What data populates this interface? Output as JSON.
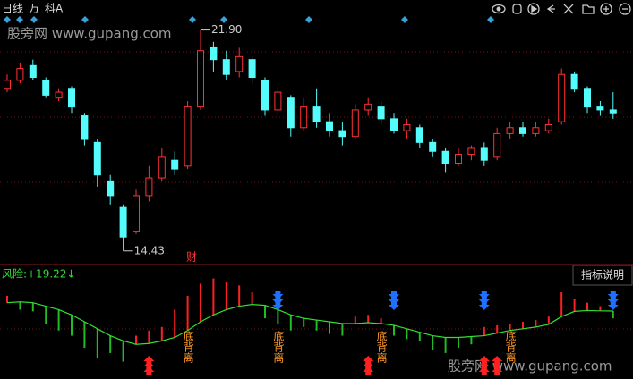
{
  "toolbar": {
    "period": "日线",
    "items": [
      "万",
      "科A"
    ]
  },
  "watermark": "股旁网 www.gupang.com",
  "chart_data": [
    {
      "type": "candlestick",
      "ylim": [
        14.0,
        22.25
      ],
      "up_color": "#ff3232",
      "down_color": "#54fcfc",
      "open": [
        19.9,
        20.2,
        20.7,
        20.2,
        19.6,
        19.9,
        19.0,
        18.1,
        16.8,
        15.9,
        15.1,
        16.3,
        16.9,
        17.5,
        17.3,
        19.3,
        21.3,
        20.9,
        20.5,
        20.9,
        20.2,
        19.2,
        19.6,
        18.6,
        19.3,
        18.8,
        18.5,
        18.3,
        19.2,
        19.3,
        18.9,
        18.5,
        18.6,
        18.1,
        17.8,
        17.4,
        17.7,
        17.9,
        17.6,
        18.4,
        18.6,
        18.4,
        18.5,
        18.8,
        20.4,
        19.9,
        19.3,
        19.2
      ],
      "close": [
        20.2,
        20.6,
        20.3,
        19.7,
        19.8,
        19.3,
        18.2,
        17.0,
        16.3,
        14.9,
        16.3,
        16.9,
        17.6,
        17.2,
        19.3,
        21.2,
        20.9,
        20.4,
        21.0,
        20.3,
        19.2,
        19.8,
        18.6,
        19.3,
        18.8,
        18.5,
        18.3,
        19.2,
        19.4,
        18.9,
        18.5,
        18.7,
        18.1,
        17.8,
        17.4,
        17.7,
        17.9,
        17.5,
        18.4,
        18.6,
        18.4,
        18.6,
        18.7,
        20.4,
        19.9,
        19.3,
        19.2,
        19.1
      ],
      "high": [
        20.4,
        20.8,
        20.9,
        20.3,
        19.9,
        20.0,
        19.1,
        18.2,
        17.0,
        16.0,
        16.5,
        17.3,
        17.9,
        17.8,
        19.5,
        21.9,
        21.5,
        21.2,
        21.3,
        21.0,
        20.3,
        20.0,
        19.7,
        19.6,
        19.9,
        19.1,
        18.8,
        19.4,
        19.6,
        19.5,
        19.1,
        18.9,
        18.7,
        18.2,
        17.9,
        17.9,
        18.0,
        18.1,
        18.6,
        18.8,
        18.8,
        18.8,
        18.9,
        20.6,
        20.5,
        20.0,
        19.5,
        19.8
      ],
      "low": [
        19.8,
        20.1,
        20.2,
        19.6,
        19.5,
        19.1,
        18.0,
        16.6,
        16.0,
        14.43,
        15.0,
        16.1,
        16.8,
        17.0,
        17.2,
        19.2,
        20.5,
        20.2,
        20.3,
        20.1,
        19.0,
        19.0,
        18.3,
        18.5,
        18.6,
        18.3,
        18.0,
        18.2,
        19.0,
        18.7,
        18.4,
        18.2,
        17.9,
        17.6,
        17.1,
        17.3,
        17.5,
        17.3,
        17.5,
        18.2,
        18.3,
        18.3,
        18.4,
        18.7,
        19.8,
        19.1,
        19.0,
        18.9
      ],
      "high_label": {
        "value": 21.9,
        "label": "21.90"
      },
      "low_label": 14.43,
      "event_label": "财"
    },
    {
      "type": "indicator",
      "ylim": [
        -20,
        45
      ],
      "series": [
        {
          "name": "风险:",
          "color": "#33dd33",
          "values": [
            24,
            24.5,
            24,
            22,
            20,
            17,
            13,
            9,
            5,
            2,
            0,
            0.5,
            2,
            4,
            8,
            13,
            17,
            20,
            22,
            23,
            22.5,
            20,
            17,
            15,
            14,
            13,
            12,
            12,
            12.5,
            12,
            11,
            9,
            7,
            5,
            4,
            4,
            4.5,
            5,
            6.5,
            8,
            9,
            10,
            11.5,
            16,
            19,
            19.5,
            19.3,
            19.22
          ]
        }
      ],
      "current": {
        "value": 19.22,
        "label": "+19.22↓"
      },
      "bars": {
        "up_color": "#ff2020",
        "down_color": "#22bb22",
        "values": [
          28,
          20,
          19,
          12,
          8,
          5,
          -2,
          -8,
          -5,
          -10,
          5,
          8,
          10,
          20,
          28,
          35,
          38,
          36,
          34,
          30,
          15,
          12,
          8,
          10,
          8,
          6,
          5,
          16,
          17,
          15,
          5,
          3,
          2,
          -3,
          -5,
          -2,
          0,
          10,
          11,
          12,
          13,
          14,
          16,
          30,
          26,
          24,
          22,
          15
        ]
      },
      "signals": [
        null,
        null,
        null,
        null,
        null,
        null,
        null,
        null,
        null,
        null,
        null,
        "buy",
        null,
        null,
        null,
        null,
        null,
        null,
        null,
        null,
        null,
        "sell",
        null,
        null,
        null,
        null,
        null,
        null,
        "buy",
        null,
        "sell",
        null,
        null,
        null,
        null,
        null,
        null,
        "both",
        "buy",
        null,
        null,
        null,
        null,
        null,
        null,
        null,
        null,
        "sell"
      ],
      "labels": [
        null,
        null,
        null,
        null,
        null,
        null,
        null,
        null,
        null,
        null,
        null,
        null,
        null,
        null,
        "底背离",
        null,
        null,
        null,
        null,
        null,
        null,
        "底背离",
        null,
        null,
        null,
        null,
        null,
        null,
        null,
        "底背离",
        null,
        null,
        null,
        null,
        null,
        null,
        null,
        null,
        null,
        "底背离",
        null,
        null,
        null,
        null,
        null,
        null,
        null,
        null
      ],
      "help_button": "指标说明"
    }
  ]
}
